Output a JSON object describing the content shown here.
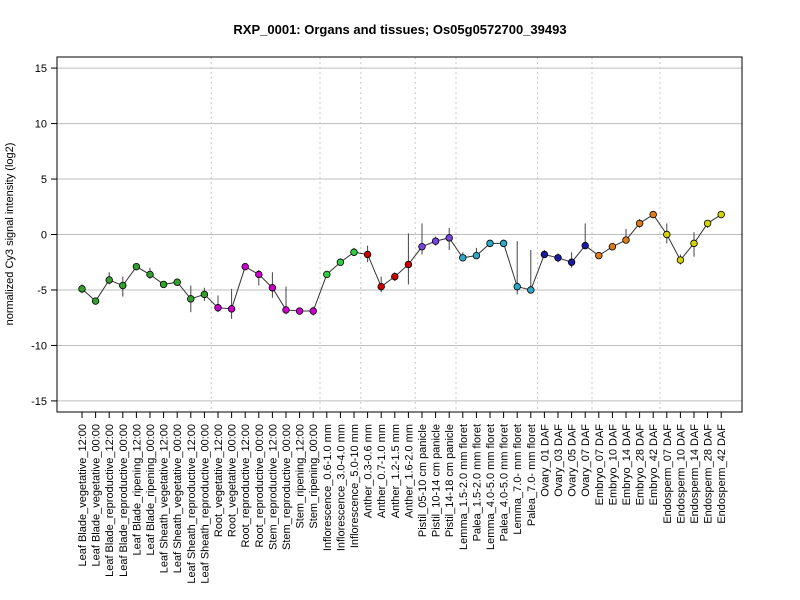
{
  "chart_data": {
    "type": "line",
    "title": "RXP_0001: Organs and tissues; Os05g0572700_39493",
    "xlabel": "",
    "ylabel": "normalized Cy3 signal intensity (log2)",
    "ylim": [
      -16,
      16
    ],
    "yticks": [
      -15,
      -10,
      -5,
      0,
      5,
      10,
      15
    ],
    "grid": true,
    "categories": [
      "Leaf Blade_vegetative_12:00",
      "Leaf Blade_vegetative_00:00",
      "Leaf Blade_reproductive_12:00",
      "Leaf Blade_reproductive_00:00",
      "Leaf Blade_ripening_12:00",
      "Leaf Blade_ripening_00:00",
      "Leaf Sheath_vegetative_12:00",
      "Leaf Sheath_vegetative_00:00",
      "Leaf Sheath_reproductive_12:00",
      "Leaf Sheath_reproductive_00:00",
      "Root_vegetative_12:00",
      "Root_vegetative_00:00",
      "Root_reproductive_12:00",
      "Root_reproductive_00:00",
      "Stem_reproductive_12:00",
      "Stem_reproductive_00:00",
      "Stem_ripening_12:00",
      "Stem_ripening_00:00",
      "Inflorescence_0.6-1.0 mm",
      "Inflorescence_3.0-4.0 mm",
      "Inflorescence_5.0-10 mm",
      "Anther_0.3-0.6 mm",
      "Anther_0.7-1.0 mm",
      "Anther_1.2-1.5 mm",
      "Anther_1.6-2.0 mm",
      "Pistil_05-10 cm panicle",
      "Pistil_10-14 cm panicle",
      "Pistil_14-18 cm panicle",
      "Lemma_1.5-2.0 mm floret",
      "Palea_1.5-2.0 mm floret",
      "Lemma_4.0-5.0 mm floret",
      "Palea_4.0-5.0 mm floret",
      "Lemma_7.0- mm floret",
      "Palea_7.0- mm floret",
      "Ovary_01 DAF",
      "Ovary_03 DAF",
      "Ovary_05 DAF",
      "Ovary_07 DAF",
      "Embryo_07 DAF",
      "Embryo_10 DAF",
      "Embryo_14 DAF",
      "Embryo_28 DAF",
      "Embryo_42 DAF",
      "Endosperm_07 DAF",
      "Endosperm_10 DAF",
      "Endosperm_14 DAF",
      "Endosperm_28 DAF",
      "Endosperm_42 DAF"
    ],
    "values": [
      -4.9,
      -6.0,
      -4.1,
      -4.6,
      -2.9,
      -3.6,
      -4.5,
      -4.3,
      -5.8,
      -5.4,
      -6.6,
      -6.7,
      -2.9,
      -3.6,
      -4.8,
      -6.8,
      -6.9,
      -6.9,
      -3.6,
      -2.5,
      -1.6,
      -1.8,
      -4.7,
      -3.8,
      -2.7,
      -1.1,
      -0.6,
      -0.3,
      -2.1,
      -1.9,
      -0.8,
      -0.8,
      -4.7,
      -5.0,
      -1.8,
      -2.1,
      -2.5,
      -1.0,
      -1.9,
      -1.1,
      -0.5,
      1.0,
      1.8,
      0.0,
      -2.3,
      -0.8,
      1.0,
      1.8
    ],
    "error_low": [
      -5.3,
      -6.3,
      -4.5,
      -5.6,
      -3.0,
      -4.0,
      -4.8,
      -4.4,
      -7.0,
      -6.0,
      -7.0,
      -7.6,
      -3.0,
      -4.6,
      -5.7,
      -7.2,
      -7.1,
      -7.3,
      -3.8,
      -2.7,
      -1.8,
      -2.5,
      -5.2,
      -4.2,
      -4.5,
      -1.8,
      -1.0,
      -1.4,
      -2.3,
      -2.0,
      -1.0,
      -0.9,
      -5.4,
      -5.2,
      -2.0,
      -2.5,
      -3.0,
      -1.2,
      -2.2,
      -1.3,
      -0.7,
      0.6,
      1.5,
      -0.8,
      -2.7,
      -2.0,
      0.6,
      1.6
    ],
    "error_high": [
      -4.5,
      -5.7,
      -3.4,
      -3.8,
      -2.7,
      -3.0,
      -4.2,
      -4.1,
      -4.6,
      -4.8,
      -5.5,
      -4.9,
      -2.7,
      -3.2,
      -3.4,
      -4.7,
      -6.6,
      -6.5,
      -3.3,
      -2.2,
      -1.2,
      -1.0,
      -3.8,
      -3.4,
      0.1,
      1.0,
      -0.2,
      0.6,
      -1.6,
      -1.2,
      -0.6,
      -0.6,
      -0.6,
      -1.4,
      -1.4,
      -1.7,
      -1.6,
      1.0,
      -1.6,
      -0.9,
      0.5,
      1.4,
      2.1,
      1.0,
      -1.8,
      0.2,
      1.3,
      2.0
    ],
    "colors": [
      "#33a02c",
      "#33a02c",
      "#33a02c",
      "#33a02c",
      "#33a02c",
      "#33a02c",
      "#33a02c",
      "#33a02c",
      "#33a02c",
      "#33a02c",
      "#cc00cc",
      "#cc00cc",
      "#cc00cc",
      "#cc00cc",
      "#cc00cc",
      "#cc00cc",
      "#cc00cc",
      "#cc00cc",
      "#2ecc40",
      "#2ecc40",
      "#2ecc40",
      "#cc0000",
      "#cc0000",
      "#cc0000",
      "#cc0000",
      "#7744dd",
      "#7744dd",
      "#7744dd",
      "#2fa8c8",
      "#2fa8c8",
      "#2fa8c8",
      "#2fa8c8",
      "#2fa8c8",
      "#2fa8c8",
      "#1a1aa0",
      "#1a1aa0",
      "#1a1aa0",
      "#1a1aa0",
      "#e07b1a",
      "#e07b1a",
      "#e07b1a",
      "#e07b1a",
      "#e07b1a",
      "#d4d400",
      "#d4d400",
      "#d4d400",
      "#d4d400",
      "#d4d400"
    ],
    "group_separators_after": [
      9,
      17,
      20,
      24,
      27,
      33,
      37,
      42
    ]
  }
}
